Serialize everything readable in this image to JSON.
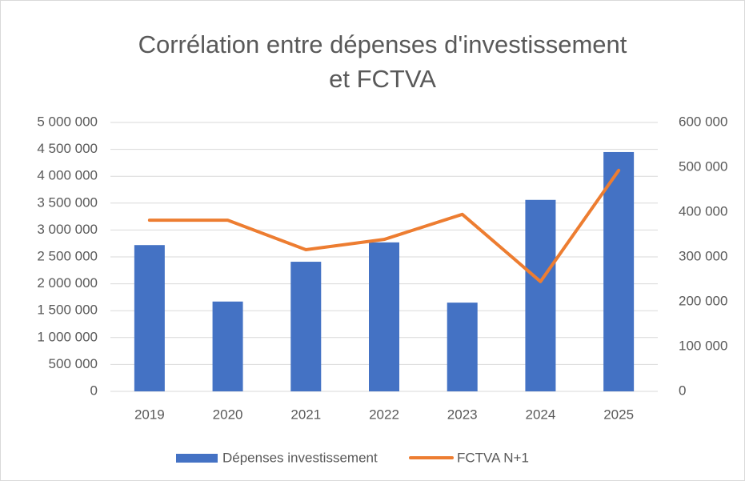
{
  "chart_data": {
    "type": "bar_line",
    "title": [
      "Corrélation entre dépenses d'investissement",
      "et FCTVA"
    ],
    "categories": [
      "2019",
      "2020",
      "2021",
      "2022",
      "2023",
      "2024",
      "2025"
    ],
    "series": [
      {
        "name": "Dépenses investissement",
        "type": "bar",
        "color": "#4472c4",
        "values": [
          2720000,
          1670000,
          2410000,
          2770000,
          1650000,
          3560000,
          4450000
        ]
      },
      {
        "name": "FCTVA  N+1",
        "type": "line",
        "axis": "y2",
        "color": "#ed7d31",
        "values": [
          382000,
          382000,
          316000,
          339000,
          395000,
          245000,
          493000
        ]
      }
    ],
    "ylim": [
      0,
      5000000
    ],
    "yticks": [
      0,
      {
        "value": 500000,
        "label": "500 000"
      },
      {
        "value": 1000000,
        "label": "1 000 000"
      },
      {
        "value": 1500000,
        "label": "1 500 000"
      },
      {
        "value": 2000000,
        "label": "2 000 000"
      },
      {
        "value": 2500000,
        "label": "2 500 000"
      },
      {
        "value": 3000000,
        "label": "3 000 000"
      },
      {
        "value": 3500000,
        "label": "3 500 000"
      },
      {
        "value": 4000000,
        "label": "4 000 000"
      },
      {
        "value": 4500000,
        "label": "4 500 000"
      },
      {
        "value": 5000000,
        "label": "5 000 000"
      }
    ],
    "y2lim": [
      0,
      600000
    ],
    "y2ticks": [
      0,
      {
        "value": 100000,
        "label": "100 000"
      },
      {
        "value": 200000,
        "label": "200 000"
      },
      {
        "value": 300000,
        "label": "300 000"
      },
      {
        "value": 400000,
        "label": "400 000"
      },
      {
        "value": 500000,
        "label": "500 000"
      },
      {
        "value": 600000,
        "label": "600 000"
      }
    ],
    "grid": true,
    "legend": "bottom"
  }
}
